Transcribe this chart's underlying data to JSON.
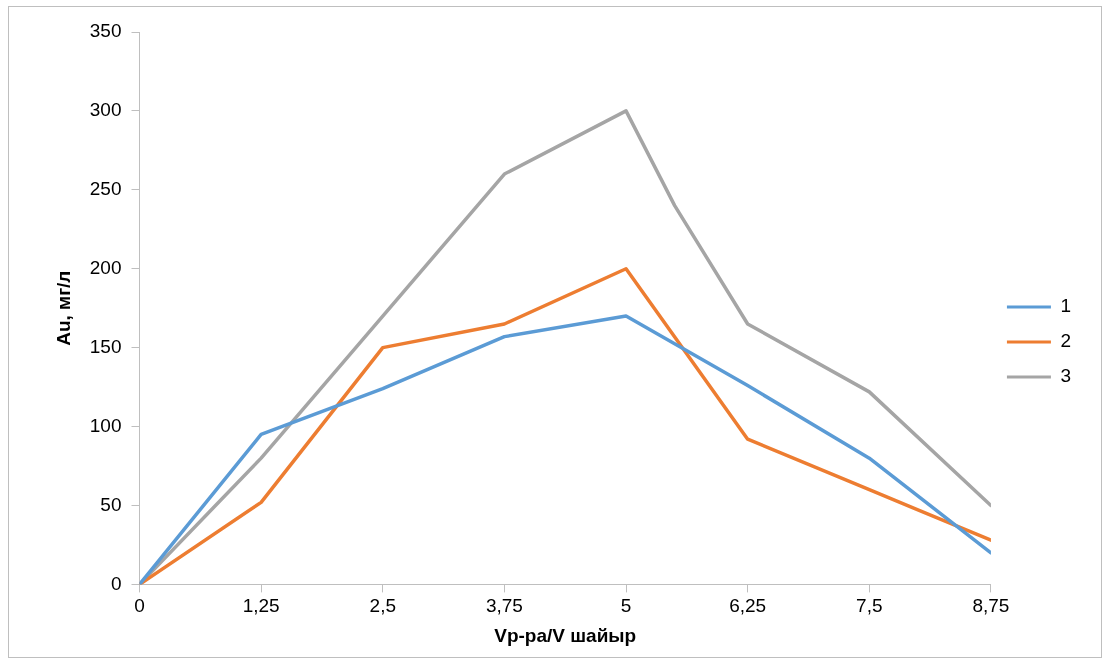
{
  "chart_data": {
    "type": "line",
    "xlabel": "Vр-ра/V шайыр",
    "ylabel": "Au, мг/л",
    "x": [
      0,
      1.25,
      2.5,
      3.75,
      5,
      6.25,
      7.5,
      8.75
    ],
    "series": [
      {
        "name": "1",
        "color": "#5b9bd5",
        "values": [
          0,
          95,
          124,
          157,
          170,
          126,
          80,
          20
        ]
      },
      {
        "name": "2",
        "color": "#ed7d31",
        "values": [
          0,
          52,
          150,
          165,
          200,
          92,
          60,
          28
        ]
      },
      {
        "name": "3",
        "color": "#a5a5a5",
        "x": [
          0,
          1.25,
          2.5,
          3.75,
          5,
          5.5,
          6.25,
          7.5,
          8.75
        ],
        "values": [
          0,
          80,
          170,
          260,
          300,
          240,
          165,
          122,
          50
        ]
      }
    ],
    "xlim": [
      0,
      8.75
    ],
    "xticks": [
      0,
      {
        "value": 1.25,
        "label": "1,25"
      },
      {
        "value": 2.5,
        "label": "2,5"
      },
      {
        "value": 3.75,
        "label": "3,75"
      },
      5,
      {
        "value": 6.25,
        "label": "6,25"
      },
      {
        "value": 7.5,
        "label": "7,5"
      },
      {
        "value": 8.75,
        "label": "8,75"
      }
    ],
    "ylim": [
      0,
      350
    ],
    "yticks": [
      0,
      50,
      100,
      150,
      200,
      250,
      300,
      350
    ],
    "grid": false,
    "legend": "right",
    "marker": "none",
    "line_style": "solid"
  }
}
